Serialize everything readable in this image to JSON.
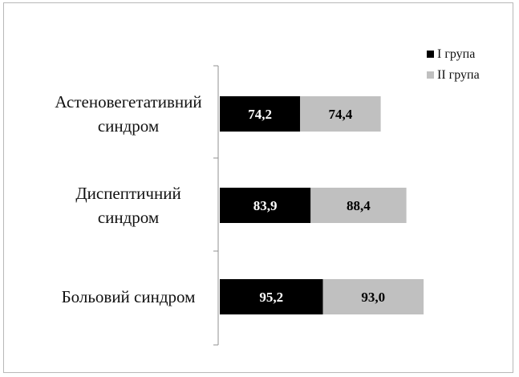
{
  "chart_data": {
    "type": "bar",
    "orientation": "horizontal",
    "stacked": true,
    "title": "",
    "xlabel": "",
    "ylabel": "",
    "categories": [
      [
        "Астеновегетативний",
        "синдром"
      ],
      [
        "Диспептичний",
        "синдром"
      ],
      [
        "Больовий синдром"
      ]
    ],
    "series": [
      {
        "name": "I група",
        "color": "#000000",
        "label_color": "#ffffff",
        "values": [
          "74,2",
          "83,9",
          "95,2"
        ],
        "numeric": [
          74.2,
          83.9,
          95.2
        ]
      },
      {
        "name": "II група",
        "color": "#c0c0c0",
        "label_color": "#000000",
        "values": [
          "74,4",
          "88,4",
          "93,0"
        ],
        "numeric": [
          74.4,
          88.4,
          93.0
        ]
      }
    ],
    "legend_position": "top-right",
    "grid": false,
    "x_axis_visible": false
  }
}
